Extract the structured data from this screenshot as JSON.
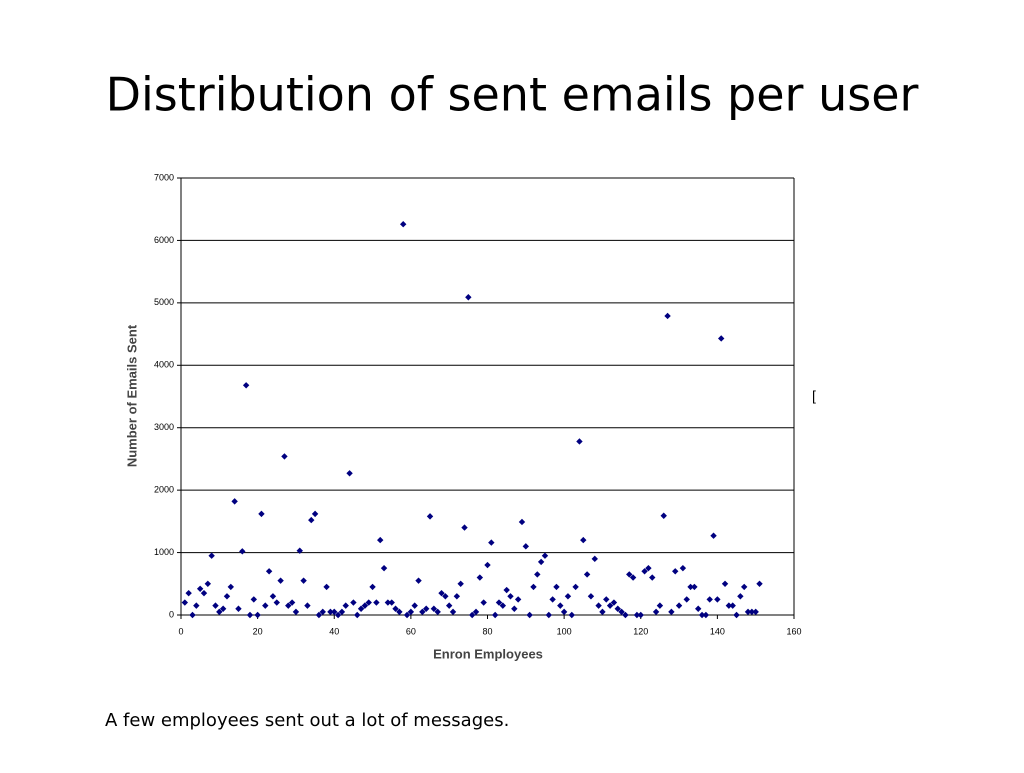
{
  "slide_title": "Distribution of sent emails per user",
  "caption": "A few employees sent out a lot of messages.",
  "fragment": "[",
  "chart_data": {
    "type": "scatter",
    "xlabel": "Enron Employees",
    "ylabel": "Number of Emails Sent",
    "color": "#000080",
    "grid": true,
    "xlim": [
      0,
      160
    ],
    "xticks": [
      0,
      20,
      40,
      60,
      80,
      100,
      120,
      140,
      160
    ],
    "ylim": [
      0,
      7000
    ],
    "yticks": [
      0,
      1000,
      2000,
      3000,
      4000,
      5000,
      6000,
      7000
    ],
    "x": [
      1,
      2,
      3,
      4,
      5,
      6,
      7,
      8,
      9,
      10,
      11,
      12,
      13,
      14,
      15,
      16,
      17,
      18,
      19,
      20,
      21,
      22,
      23,
      24,
      25,
      26,
      27,
      28,
      29,
      30,
      31,
      32,
      33,
      34,
      35,
      36,
      37,
      38,
      39,
      40,
      41,
      42,
      43,
      44,
      45,
      46,
      47,
      48,
      49,
      50,
      51,
      52,
      53,
      54,
      55,
      56,
      57,
      58,
      59,
      60,
      61,
      62,
      63,
      64,
      65,
      66,
      67,
      68,
      69,
      70,
      71,
      72,
      73,
      74,
      75,
      76,
      77,
      78,
      79,
      80,
      81,
      82,
      83,
      84,
      85,
      86,
      87,
      88,
      89,
      90,
      91,
      92,
      93,
      94,
      95,
      96,
      97,
      98,
      99,
      100,
      101,
      102,
      103,
      104,
      105,
      106,
      107,
      108,
      109,
      110,
      111,
      112,
      113,
      114,
      115,
      116,
      117,
      118,
      119,
      120,
      121,
      122,
      123,
      124,
      125,
      126,
      127,
      128,
      129,
      130,
      131,
      132,
      133,
      134,
      135,
      136,
      137,
      138,
      139,
      140,
      141,
      142,
      143,
      144,
      145,
      146,
      147,
      148,
      149,
      150,
      151
    ],
    "values": [
      200,
      350,
      0,
      150,
      420,
      350,
      500,
      950,
      150,
      50,
      100,
      300,
      450,
      1820,
      100,
      1020,
      3680,
      0,
      250,
      0,
      1620,
      150,
      700,
      300,
      200,
      550,
      2540,
      150,
      200,
      50,
      1030,
      550,
      150,
      1520,
      1620,
      0,
      50,
      450,
      50,
      50,
      0,
      50,
      150,
      2270,
      200,
      0,
      100,
      150,
      200,
      450,
      200,
      1200,
      750,
      200,
      200,
      100,
      50,
      6260,
      0,
      50,
      150,
      550,
      50,
      100,
      1580,
      100,
      50,
      350,
      300,
      150,
      50,
      300,
      500,
      1400,
      5090,
      0,
      50,
      600,
      200,
      800,
      1160,
      0,
      200,
      150,
      400,
      300,
      100,
      250,
      1490,
      1100,
      0,
      450,
      650,
      850,
      950,
      0,
      250,
      450,
      150,
      50,
      300,
      0,
      450,
      2780,
      1200,
      650,
      300,
      900,
      150,
      50,
      250,
      150,
      200,
      100,
      50,
      0,
      650,
      600,
      0,
      0,
      700,
      750,
      600,
      50,
      150,
      1590,
      4790,
      50,
      700,
      150,
      750,
      250,
      450,
      450,
      100,
      0,
      0,
      250,
      1270,
      250,
      4430,
      500,
      150,
      150,
      0,
      300,
      450,
      50,
      50,
      50,
      500
    ]
  }
}
